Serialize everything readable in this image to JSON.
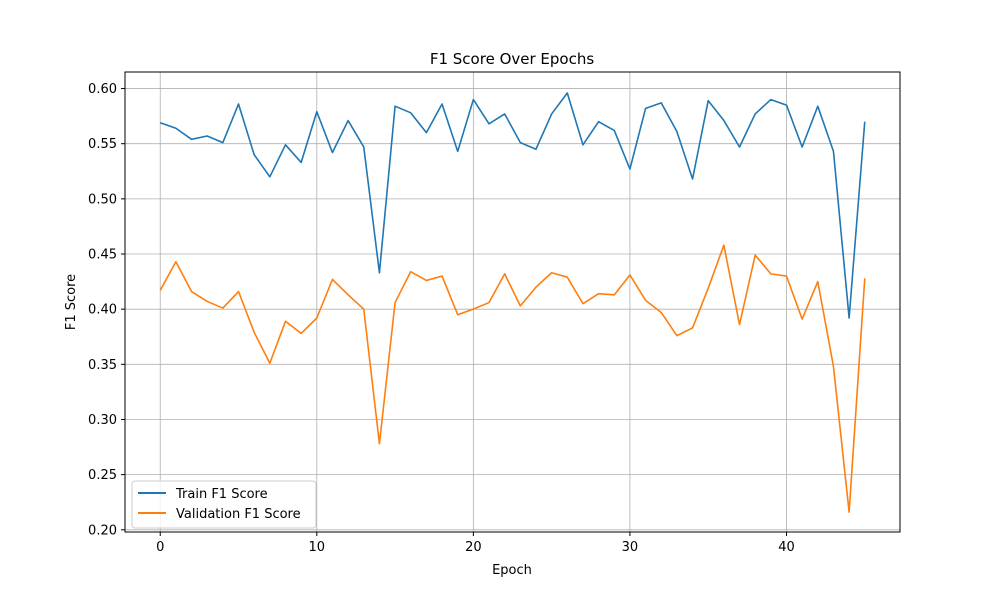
{
  "chart_data": {
    "type": "line",
    "title": "F1 Score Over Epochs",
    "xlabel": "Epoch",
    "ylabel": "F1 Score",
    "xlim": [
      -2.25,
      47.25
    ],
    "ylim": [
      0.198,
      0.615
    ],
    "grid": true,
    "legend_position": "lower-left",
    "x": [
      0,
      1,
      2,
      3,
      4,
      5,
      6,
      7,
      8,
      9,
      10,
      11,
      12,
      13,
      14,
      15,
      16,
      17,
      18,
      19,
      20,
      21,
      22,
      23,
      24,
      25,
      26,
      27,
      28,
      29,
      30,
      31,
      32,
      33,
      34,
      35,
      36,
      37,
      38,
      39,
      40,
      41,
      42,
      43,
      44,
      45
    ],
    "xticks": [
      {
        "value": 0,
        "label": "0"
      },
      {
        "value": 10,
        "label": "10"
      },
      {
        "value": 20,
        "label": "20"
      },
      {
        "value": 30,
        "label": "30"
      },
      {
        "value": 40,
        "label": "40"
      }
    ],
    "yticks": [
      {
        "value": 0.2,
        "label": "0.20"
      },
      {
        "value": 0.25,
        "label": "0.25"
      },
      {
        "value": 0.3,
        "label": "0.30"
      },
      {
        "value": 0.35,
        "label": "0.35"
      },
      {
        "value": 0.4,
        "label": "0.40"
      },
      {
        "value": 0.45,
        "label": "0.45"
      },
      {
        "value": 0.5,
        "label": "0.50"
      },
      {
        "value": 0.55,
        "label": "0.55"
      },
      {
        "value": 0.6,
        "label": "0.60"
      }
    ],
    "series": [
      {
        "name": "Train F1 Score",
        "color": "#1f77b4",
        "values": [
          0.569,
          0.564,
          0.554,
          0.557,
          0.551,
          0.586,
          0.54,
          0.52,
          0.549,
          0.533,
          0.579,
          0.542,
          0.571,
          0.547,
          0.433,
          0.584,
          0.578,
          0.56,
          0.586,
          0.543,
          0.59,
          0.568,
          0.577,
          0.551,
          0.545,
          0.577,
          0.596,
          0.549,
          0.57,
          0.562,
          0.527,
          0.582,
          0.587,
          0.561,
          0.518,
          0.589,
          0.571,
          0.547,
          0.577,
          0.59,
          0.585,
          0.547,
          0.584,
          0.543,
          0.392,
          0.57
        ]
      },
      {
        "name": "Validation F1 Score",
        "color": "#ff7f0e",
        "values": [
          0.417,
          0.443,
          0.416,
          0.407,
          0.401,
          0.416,
          0.379,
          0.351,
          0.389,
          0.378,
          0.392,
          0.427,
          0.413,
          0.4,
          0.278,
          0.406,
          0.434,
          0.426,
          0.43,
          0.395,
          0.4,
          0.406,
          0.432,
          0.403,
          0.42,
          0.433,
          0.429,
          0.405,
          0.414,
          0.413,
          0.431,
          0.408,
          0.397,
          0.376,
          0.383,
          0.419,
          0.458,
          0.386,
          0.449,
          0.432,
          0.43,
          0.391,
          0.425,
          0.348,
          0.216,
          0.428
        ]
      }
    ]
  }
}
